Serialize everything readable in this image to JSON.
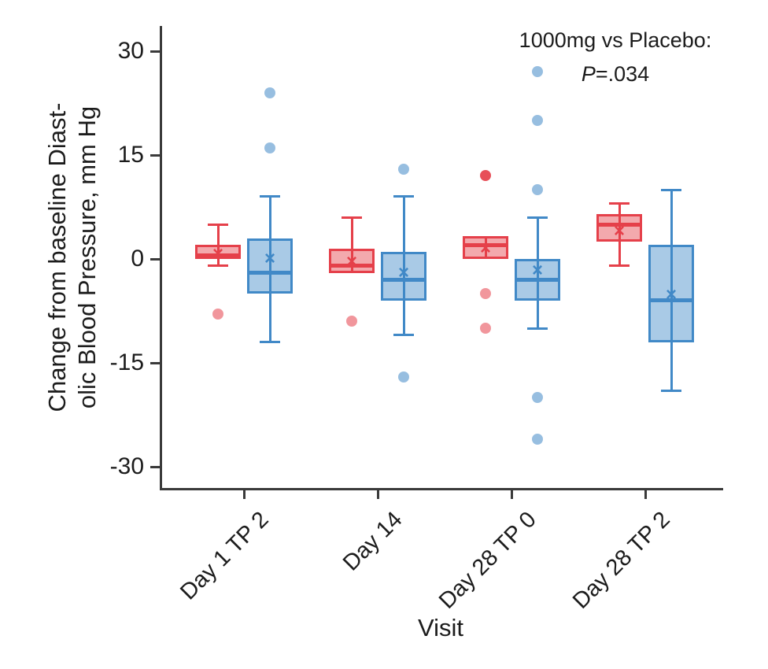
{
  "chart_data": {
    "type": "boxplot",
    "title": "",
    "xlabel": "Visit",
    "ylabel_lines": [
      "Change from baseline Diast-",
      "olic Blood Pressure, mm Hg"
    ],
    "annotation": {
      "line1": "1000mg vs Placebo:",
      "p_symbol": "P",
      "p_value": "=.034"
    },
    "y_axis": {
      "min": -33,
      "max": 33,
      "ticks": [
        30,
        15,
        0,
        -15,
        -30
      ],
      "grid": false
    },
    "legend": "none",
    "categories": [
      "Day 1 TP 2",
      "Day 14",
      "Day 28 TP 0",
      "Day 28 TP 2"
    ],
    "axis_color": "#3a3a3a",
    "series": [
      {
        "name": "1000mg",
        "color": "#e5404a",
        "fill_alpha": 0.45,
        "outlier_alpha": 0.55,
        "boxes": [
          {
            "whisker_low": -1,
            "q1": 0,
            "median": 0.5,
            "q3": 2,
            "whisker_high": 5,
            "mean": 0.7,
            "outliers": [
              -8
            ],
            "solid_outliers": []
          },
          {
            "whisker_low": -2,
            "q1": -2,
            "median": -1,
            "q3": 1.5,
            "whisker_high": 6,
            "mean": -0.5,
            "outliers": [
              -9
            ],
            "solid_outliers": []
          },
          {
            "whisker_low": 0,
            "q1": 0,
            "median": 2,
            "q3": 3.3,
            "whisker_high": 3.3,
            "mean": 1.5,
            "outliers": [
              -5,
              -10
            ],
            "solid_outliers": [
              12
            ]
          },
          {
            "whisker_low": -1,
            "q1": 2.5,
            "median": 5,
            "q3": 6.5,
            "whisker_high": 8,
            "mean": 4,
            "outliers": [],
            "solid_outliers": []
          }
        ]
      },
      {
        "name": "Placebo",
        "color": "#4189c7",
        "fill_alpha": 0.45,
        "outlier_alpha": 0.55,
        "boxes": [
          {
            "whisker_low": -12,
            "q1": -5,
            "median": -2,
            "q3": 3,
            "whisker_high": 9,
            "mean": 0,
            "outliers": [
              24,
              16
            ],
            "solid_outliers": []
          },
          {
            "whisker_low": -11,
            "q1": -6,
            "median": -3,
            "q3": 1,
            "whisker_high": 9,
            "mean": -2,
            "outliers": [
              13,
              -17
            ],
            "solid_outliers": []
          },
          {
            "whisker_low": -10,
            "q1": -6,
            "median": -3,
            "q3": 0,
            "whisker_high": 6,
            "mean": -1.7,
            "outliers": [
              27,
              20,
              10,
              -20,
              -26
            ],
            "solid_outliers": []
          },
          {
            "whisker_low": -19,
            "q1": -12,
            "median": -6,
            "q3": 2,
            "whisker_high": 10,
            "mean": -5.2,
            "outliers": [],
            "solid_outliers": []
          }
        ]
      }
    ]
  }
}
